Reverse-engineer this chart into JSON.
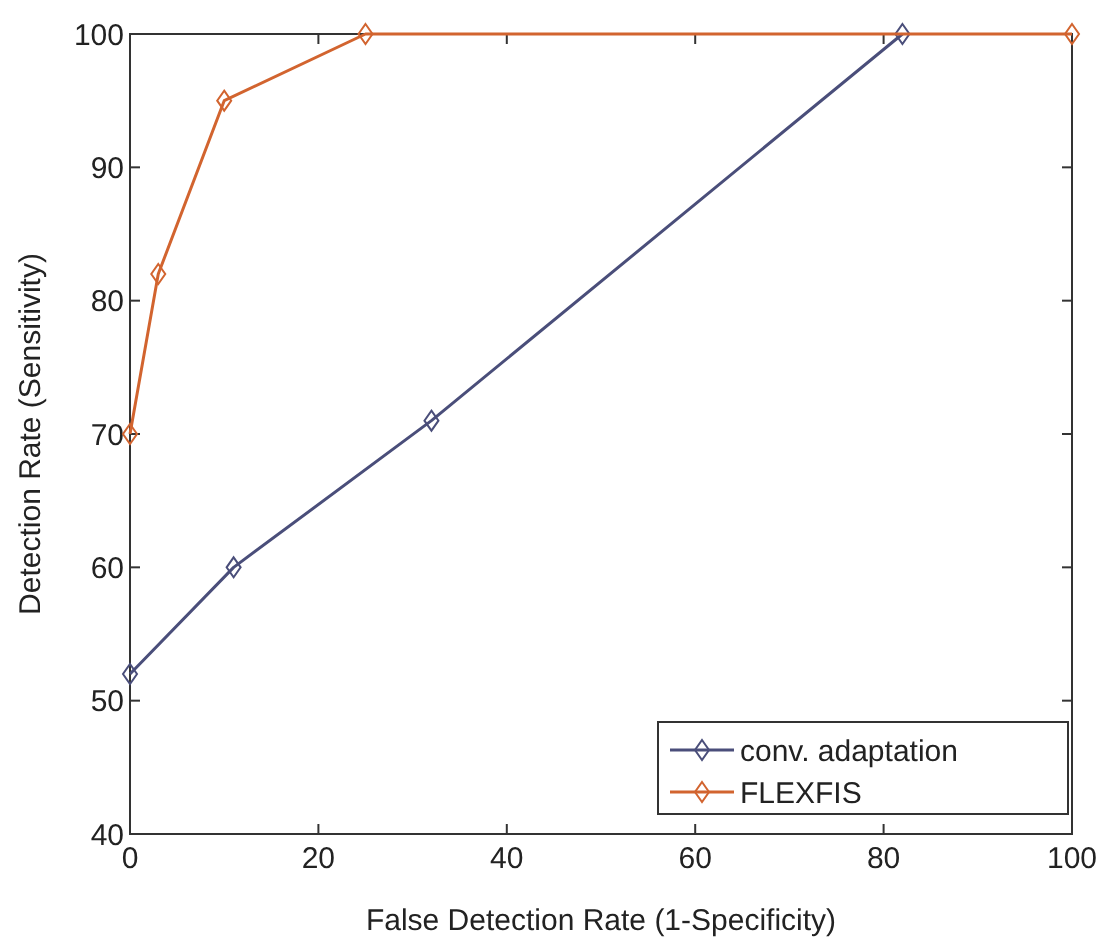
{
  "chart_data": {
    "type": "line",
    "xlabel": "False Detection Rate (1-Specificity)",
    "ylabel": "Detection Rate (Sensitivity)",
    "xlim": [
      0,
      100
    ],
    "xticks": [
      0,
      20,
      40,
      60,
      80,
      100
    ],
    "ylim": [
      40,
      100
    ],
    "yticks": [
      40,
      50,
      60,
      70,
      80,
      90,
      100
    ],
    "marker": "diamond",
    "legend": "bottom right",
    "grid": false,
    "series": [
      {
        "name": "conv. adaptation",
        "color": "#4a4e7a",
        "x": [
          0,
          11,
          32,
          82
        ],
        "values": [
          52,
          60,
          71,
          100
        ]
      },
      {
        "name": "FLEXFIS",
        "color": "#d2642f",
        "x": [
          0,
          3,
          10,
          25,
          100
        ],
        "values": [
          70,
          82,
          95,
          100,
          100
        ]
      }
    ]
  }
}
